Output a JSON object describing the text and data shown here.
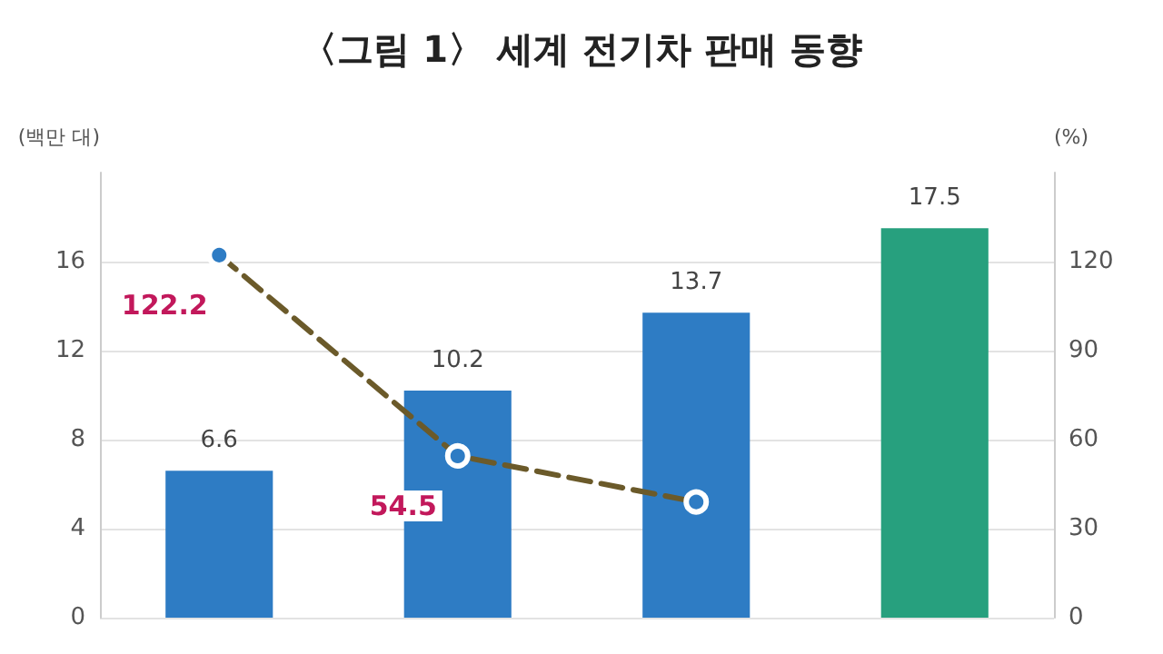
{
  "chart_data": {
    "type": "bar",
    "title": "〈그림 1〉 세계 전기차 판매 동향",
    "ylabel": "(백만 대)",
    "y2label": "(%)",
    "categories": [
      null,
      null,
      null,
      null
    ],
    "series": [
      {
        "colors": [
          "#2e7cc4",
          "#2e7cc4",
          "#2e7cc4",
          "#27a07e"
        ],
        "values": [
          6.6,
          10.2,
          13.7,
          17.5
        ],
        "value_labels": [
          "6.6",
          "10.2",
          "13.7",
          "17.5"
        ]
      },
      {
        "type": "line",
        "axis": "y2",
        "color": "#6b5a2a",
        "line_style": "dashed",
        "marker": "circle",
        "values": [
          122.2,
          54.5,
          39,
          null
        ],
        "value_labels": [
          "122.2",
          "54.5",
          null,
          null
        ]
      }
    ],
    "ylim": [
      0,
      20
    ],
    "yticks": [
      0,
      4,
      8,
      12,
      16
    ],
    "y2lim": [
      0,
      150
    ],
    "y2ticks": [
      0,
      30,
      60,
      90,
      120
    ],
    "grid": "y"
  }
}
